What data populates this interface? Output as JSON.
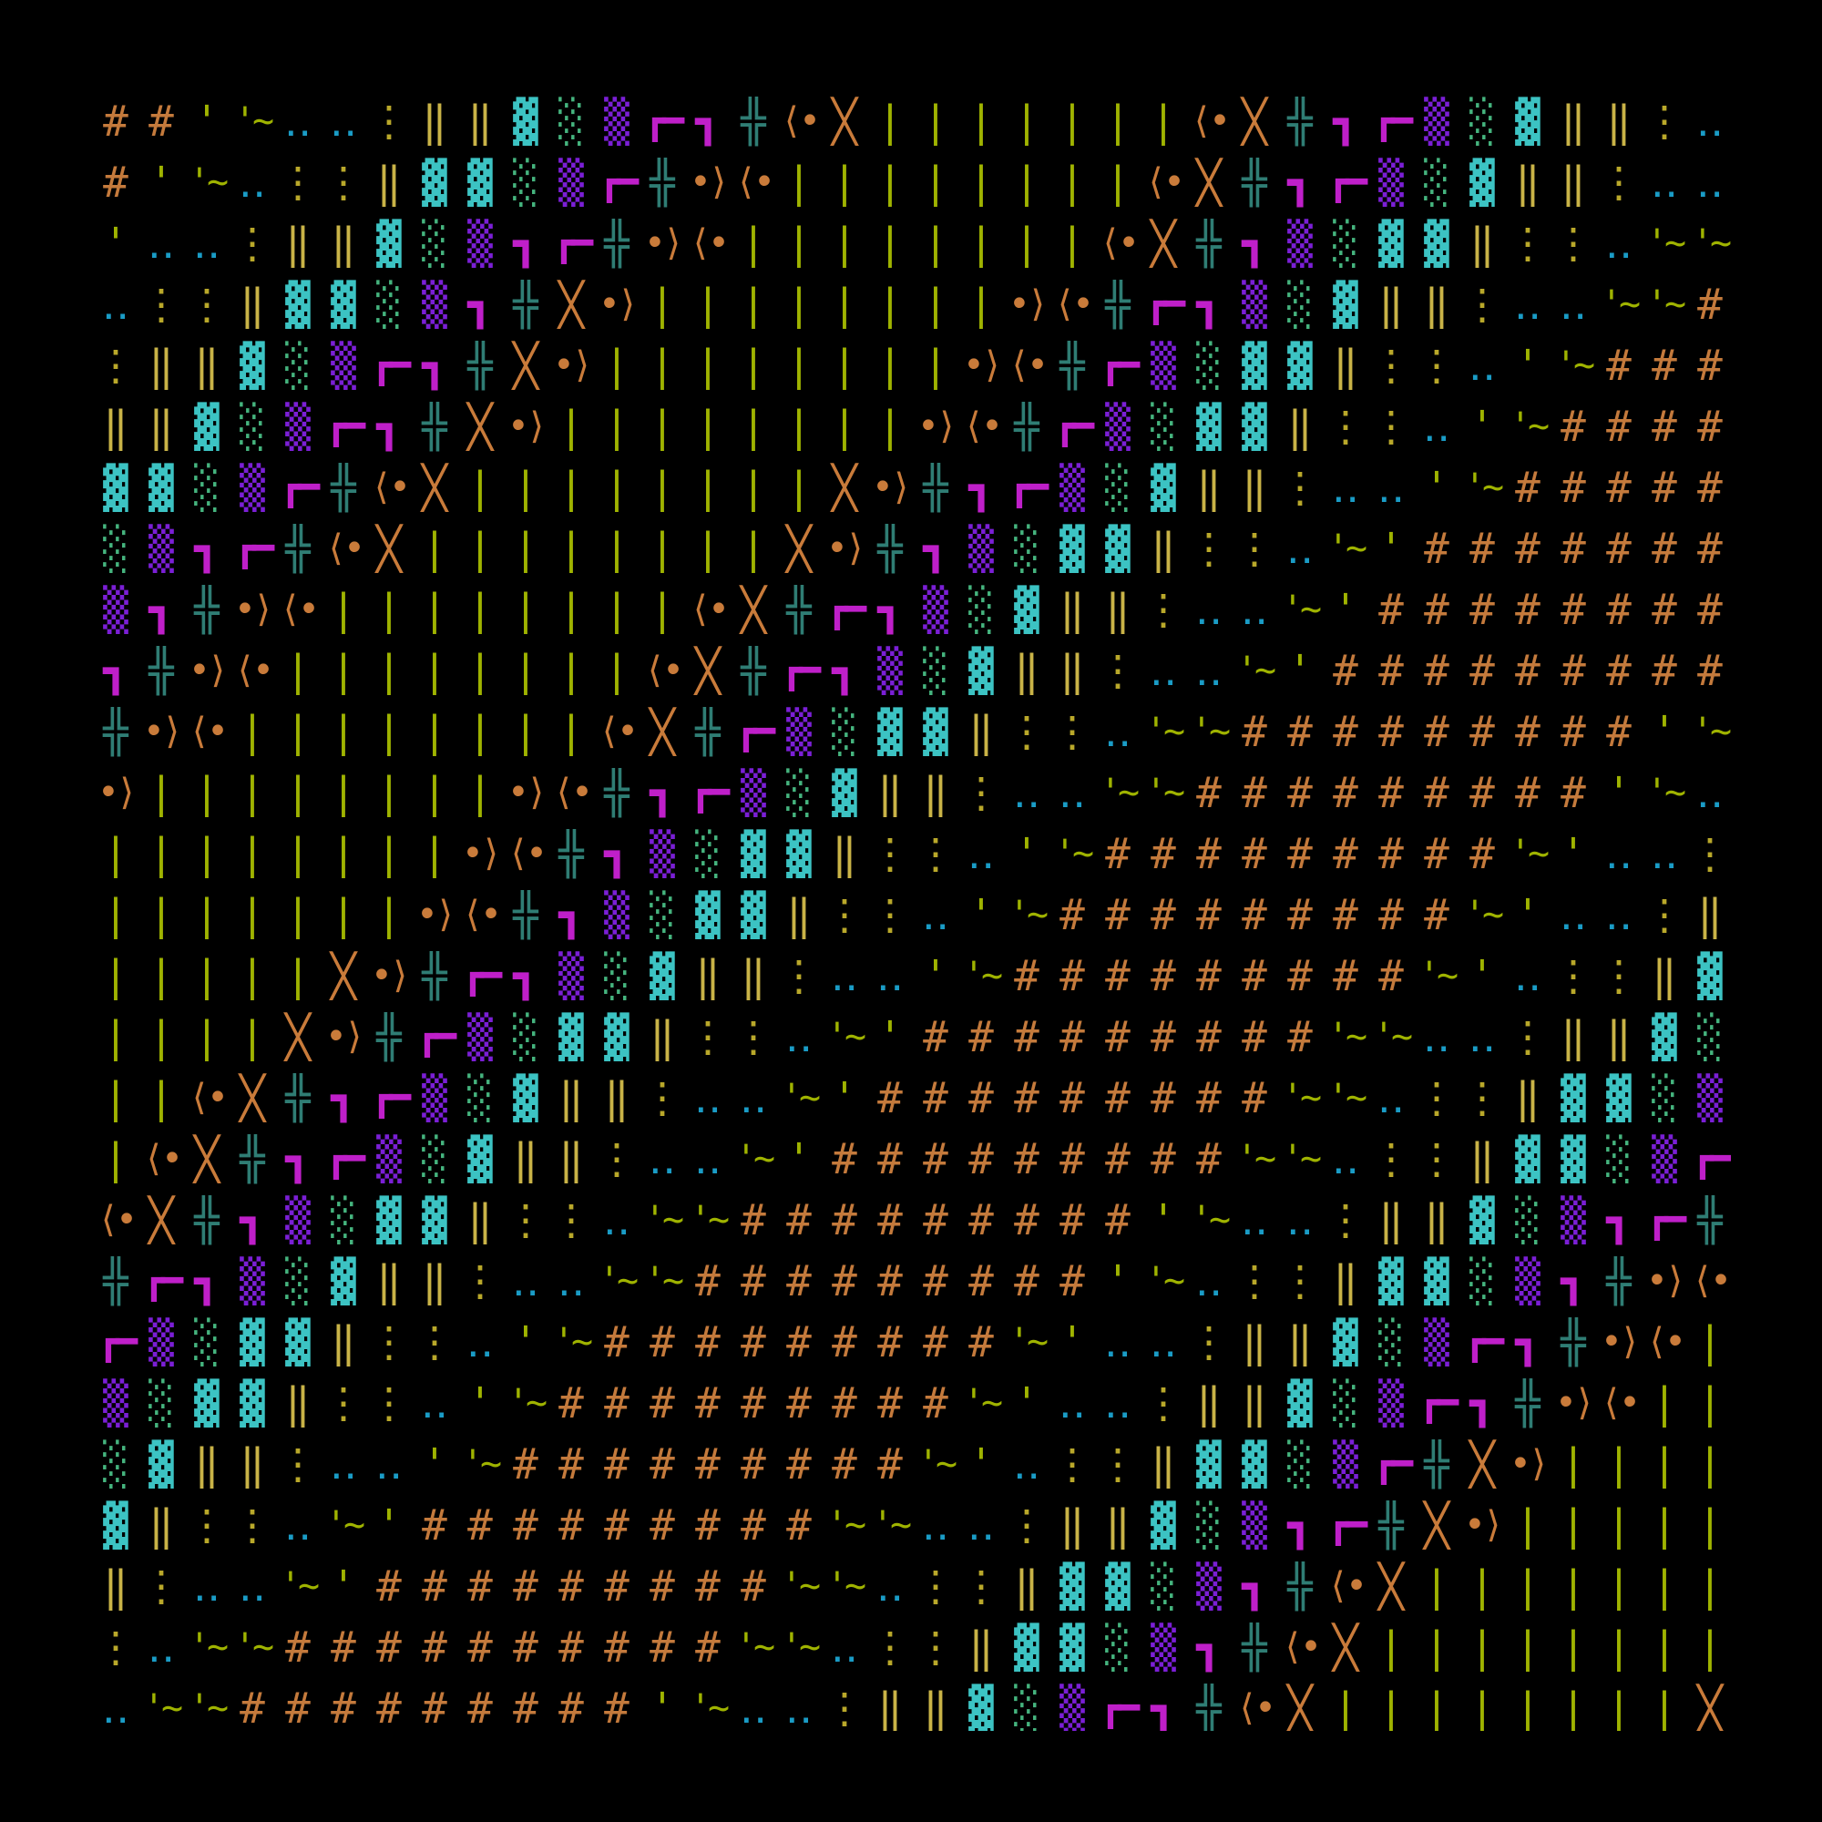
{
  "background": "#000000",
  "palette": [
    {
      "name": "hash",
      "glyphs": [
        "#"
      ],
      "color": "#c47a3c"
    },
    {
      "name": "tilde",
      "glyphs": [
        "'~",
        "'~",
        "'"
      ],
      "color": "#9fb300"
    },
    {
      "name": "two-dots",
      "glyphs": [
        "‥"
      ],
      "color": "#1a9cc6"
    },
    {
      "name": "vdots",
      "glyphs": [
        "⋮"
      ],
      "color": "#b9a82a"
    },
    {
      "name": "double-bar",
      "glyphs": [
        "‖"
      ],
      "color": "#c9b347"
    },
    {
      "name": "dark-shade",
      "glyphs": [
        "▓"
      ],
      "color": "#3cc3c3"
    },
    {
      "name": "light-shade",
      "glyphs": [
        "░"
      ],
      "color": "#45b47e"
    },
    {
      "name": "med-shade",
      "glyphs": [
        "▒"
      ],
      "color": "#7b1fd6"
    },
    {
      "name": "box-corner",
      "glyphs": [
        "┏━",
        "┓"
      ],
      "color": "#bf1fc9"
    },
    {
      "name": "cross",
      "glyphs": [
        "╬"
      ],
      "color": "#2f7d74"
    },
    {
      "name": "diamond",
      "glyphs": [
        "⟨•",
        "╳",
        "•⟩"
      ],
      "color": "#c97b3a"
    },
    {
      "name": "bar",
      "glyphs": [
        "|"
      ],
      "color": "#9fb300"
    }
  ]
}
